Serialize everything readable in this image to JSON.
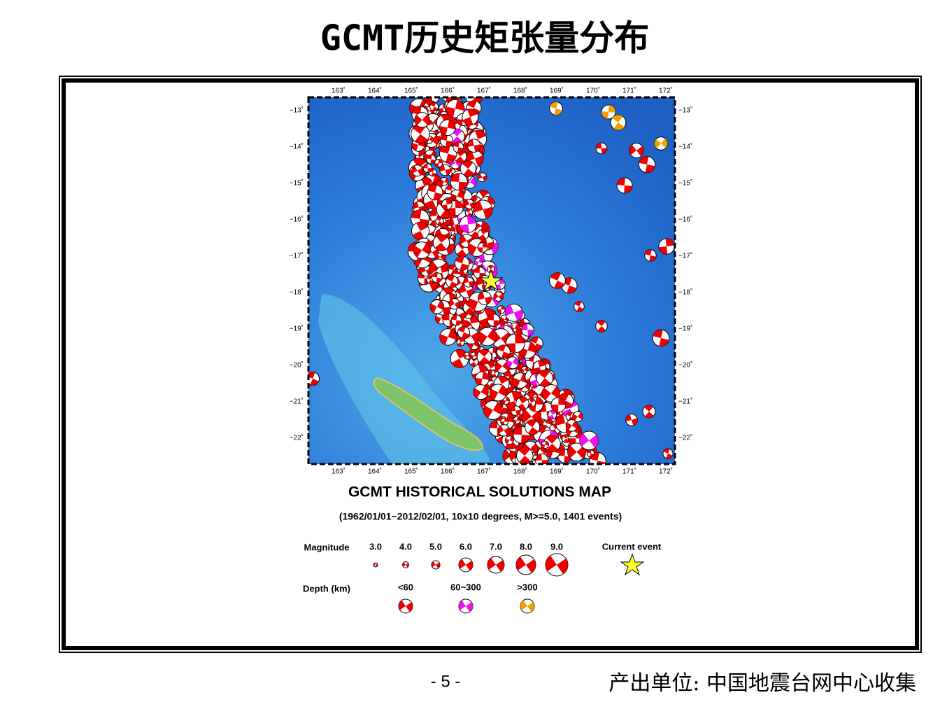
{
  "header": {
    "title": "GCMT历史矩张量分布"
  },
  "map": {
    "lon_ticks": [
      "163˚",
      "164˚",
      "165˚",
      "166˚",
      "167˚",
      "168˚",
      "169˚",
      "170˚",
      "171˚",
      "172˚"
    ],
    "lat_ticks": [
      "−13˚",
      "−14˚",
      "−15˚",
      "−16˚",
      "−17˚",
      "−18˚",
      "−19˚",
      "−20˚",
      "−21˚",
      "−22˚"
    ],
    "title": "GCMT HISTORICAL SOLUTIONS MAP",
    "subtitle": "(1962/01/01~2012/02/01, 10x10 degrees, M>=5.0, 1401 events)"
  },
  "legend": {
    "magnitude_label": "Magnitude",
    "magnitudes": [
      "3.0",
      "4.0",
      "5.0",
      "6.0",
      "7.0",
      "8.0",
      "9.0"
    ],
    "current_event": "Current event",
    "depth_label": "Depth (km)",
    "depths": [
      "<60",
      "60~300",
      ">300"
    ]
  },
  "footer": {
    "page": "- 5 -",
    "source": "产出单位: 中国地震台网中心收集"
  }
}
